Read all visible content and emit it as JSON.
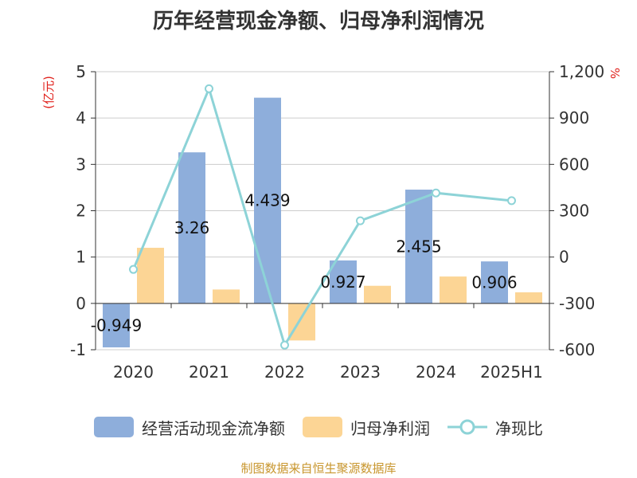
{
  "chart_data": {
    "type": "bar",
    "title": "历年经营现金净额、归母净利润情况",
    "categories": [
      "2020",
      "2021",
      "2022",
      "2023",
      "2024",
      "2025H1"
    ],
    "series": [
      {
        "name": "经营活动现金流净额",
        "type": "bar",
        "axis": "left",
        "values": [
          -0.949,
          3.26,
          4.439,
          0.927,
          2.455,
          0.906
        ],
        "labels": [
          "-0.949",
          "3.26",
          "4.439",
          "0.927",
          "2.455",
          "0.906"
        ],
        "color": "#8eaedb"
      },
      {
        "name": "归母净利润",
        "type": "bar",
        "axis": "left",
        "values": [
          1.2,
          0.3,
          -0.8,
          0.38,
          0.58,
          0.24
        ],
        "color": "#fcd595"
      },
      {
        "name": "净现比",
        "type": "line",
        "axis": "right",
        "values": [
          -80,
          1090,
          -570,
          235,
          415,
          365
        ],
        "color": "#8dd3d7"
      }
    ],
    "y_left": {
      "label": "(亿元)",
      "min": -1,
      "max": 5,
      "ticks": [
        "-1",
        "0",
        "1",
        "2",
        "3",
        "4",
        "5"
      ]
    },
    "y_right": {
      "label": "%",
      "min": -600,
      "max": 1200,
      "ticks": [
        "-600",
        "-300",
        "0",
        "300",
        "600",
        "900",
        "1,200"
      ]
    },
    "grid": true,
    "legend_position": "bottom"
  },
  "source": "制图数据来自恒生聚源数据库",
  "colors": {
    "axis_label": "#e0201b",
    "source": "#c8962e"
  }
}
